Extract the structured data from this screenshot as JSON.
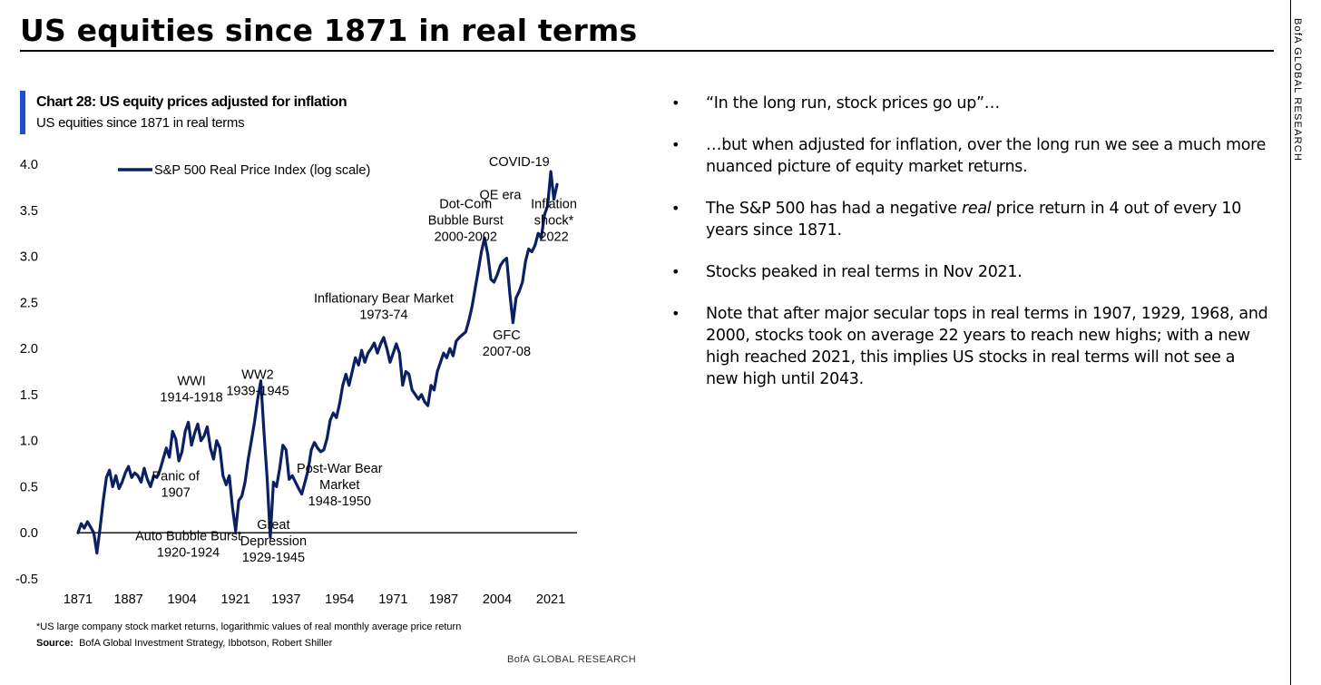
{
  "header": {
    "title": "US equities since 1871 in real terms",
    "side_brand": "BofA GLOBAL RESEARCH"
  },
  "chart_header": {
    "title": "Chart 28: US equity prices adjusted for inflation",
    "subtitle": "US equities since 1871 in real terms"
  },
  "footer": {
    "footnote": "*US large company stock market returns, logarithmic values of real monthly average price return",
    "source_label": "Source:",
    "source_text": "BofA Global Investment Strategy, Ibbotson, Robert Shiller",
    "brand": "BofA GLOBAL RESEARCH"
  },
  "bullets": [
    {
      "marker": "•",
      "parts": [
        {
          "t": "“In the long run, stock prices go up”…"
        }
      ]
    },
    {
      "marker": "•",
      "parts": [
        {
          "t": "…but when adjusted for inflation, over the long run we see a much more nuanced picture of equity market returns."
        }
      ]
    },
    {
      "marker": "•",
      "parts": [
        {
          "t": "The S&P 500 has had a negative "
        },
        {
          "t": "real",
          "i": true
        },
        {
          "t": " price return in 4 out of every 10 years since 1871."
        }
      ]
    },
    {
      "marker": "•",
      "parts": [
        {
          "t": "Stocks peaked in real terms in Nov 2021."
        }
      ]
    },
    {
      "marker": "•",
      "parts": [
        {
          "t": "Note that after major secular tops in real terms in 1907, 1929, 1968, and 2000, stocks took on average 22 years to reach new highs; with a new high reached 2021, this implies US stocks in real terms will not see a new high until 2043."
        }
      ]
    }
  ],
  "chart_data": {
    "type": "line",
    "title": "Chart 28: US equity prices adjusted for inflation",
    "subtitle": "US equities since 1871 in real terms",
    "xlabel": "",
    "ylabel": "",
    "xlim": [
      1871,
      2023
    ],
    "ylim": [
      -0.5,
      4.0
    ],
    "x_ticks": [
      "1871",
      "1887",
      "1904",
      "1921",
      "1937",
      "1954",
      "1971",
      "1987",
      "2004",
      "2021"
    ],
    "y_ticks": [
      "4.0",
      "3.5",
      "3.0",
      "2.5",
      "2.0",
      "1.5",
      "1.0",
      "0.5",
      "0.0",
      "-0.5"
    ],
    "color": "#0b1f63",
    "series": [
      {
        "name": "S&P 500 Real Price Index (log scale)",
        "x": [
          1871,
          1872,
          1873,
          1874,
          1875,
          1876,
          1877,
          1878,
          1879,
          1880,
          1881,
          1882,
          1883,
          1884,
          1885,
          1886,
          1887,
          1888,
          1889,
          1890,
          1891,
          1892,
          1893,
          1894,
          1895,
          1896,
          1897,
          1898,
          1899,
          1900,
          1901,
          1902,
          1903,
          1904,
          1905,
          1906,
          1907,
          1908,
          1909,
          1910,
          1911,
          1912,
          1913,
          1914,
          1915,
          1916,
          1917,
          1918,
          1919,
          1920,
          1921,
          1922,
          1923,
          1924,
          1925,
          1926,
          1927,
          1928,
          1929,
          1930,
          1931,
          1932,
          1933,
          1934,
          1935,
          1936,
          1937,
          1938,
          1939,
          1940,
          1941,
          1942,
          1943,
          1944,
          1945,
          1946,
          1947,
          1948,
          1949,
          1950,
          1951,
          1952,
          1953,
          1954,
          1955,
          1956,
          1957,
          1958,
          1959,
          1960,
          1961,
          1962,
          1963,
          1964,
          1965,
          1966,
          1967,
          1968,
          1969,
          1970,
          1971,
          1972,
          1973,
          1974,
          1975,
          1976,
          1977,
          1978,
          1979,
          1980,
          1981,
          1982,
          1983,
          1984,
          1985,
          1986,
          1987,
          1988,
          1989,
          1990,
          1991,
          1992,
          1993,
          1994,
          1995,
          1996,
          1997,
          1998,
          1999,
          2000,
          2001,
          2002,
          2003,
          2004,
          2005,
          2006,
          2007,
          2008,
          2009,
          2010,
          2011,
          2012,
          2013,
          2014,
          2015,
          2016,
          2017,
          2018,
          2019,
          2020,
          2021,
          2022,
          2023
        ],
        "values": [
          0.0,
          0.1,
          0.05,
          0.12,
          0.06,
          0.0,
          -0.22,
          0.05,
          0.35,
          0.6,
          0.68,
          0.5,
          0.62,
          0.48,
          0.55,
          0.65,
          0.72,
          0.6,
          0.65,
          0.62,
          0.55,
          0.7,
          0.58,
          0.5,
          0.62,
          0.6,
          0.68,
          0.8,
          0.92,
          0.82,
          1.1,
          1.02,
          0.78,
          0.88,
          1.1,
          1.2,
          0.95,
          1.08,
          1.18,
          1.0,
          1.05,
          1.15,
          0.92,
          0.8,
          1.0,
          0.92,
          0.62,
          0.52,
          0.62,
          0.28,
          0.02,
          0.35,
          0.4,
          0.55,
          0.8,
          1.0,
          1.2,
          1.45,
          1.65,
          1.1,
          0.6,
          -0.05,
          0.55,
          0.5,
          0.7,
          0.95,
          0.9,
          0.58,
          0.62,
          0.55,
          0.48,
          0.42,
          0.55,
          0.68,
          0.9,
          0.98,
          0.92,
          0.88,
          0.9,
          1.02,
          1.22,
          1.3,
          1.25,
          1.4,
          1.6,
          1.72,
          1.6,
          1.75,
          1.9,
          1.82,
          1.98,
          1.85,
          1.95,
          2.0,
          2.06,
          1.95,
          2.05,
          2.12,
          2.0,
          1.85,
          1.95,
          2.05,
          1.95,
          1.6,
          1.75,
          1.72,
          1.55,
          1.5,
          1.45,
          1.5,
          1.42,
          1.38,
          1.6,
          1.55,
          1.75,
          1.85,
          1.95,
          1.9,
          2.0,
          1.92,
          2.08,
          2.12,
          2.15,
          2.18,
          2.3,
          2.45,
          2.65,
          2.85,
          3.05,
          3.2,
          3.02,
          2.75,
          2.72,
          2.8,
          2.9,
          2.95,
          2.98,
          2.6,
          2.28,
          2.55,
          2.62,
          2.72,
          2.95,
          3.08,
          3.05,
          3.12,
          3.25,
          3.2,
          3.45,
          3.55,
          3.92,
          3.62,
          3.78
        ]
      }
    ],
    "annotations": [
      {
        "x": 1907,
        "y": 1.6,
        "lines": [
          "WWI",
          "1914-1918"
        ]
      },
      {
        "x": 1873,
        "y": 0.57,
        "lines": [
          "Panic of",
          "1907"
        ],
        "x_label": 1902
      },
      {
        "x": 1928,
        "y": 1.67,
        "lines": [
          "WW2",
          "1939-1945"
        ]
      },
      {
        "x": 1919,
        "y": -0.08,
        "lines": [
          "Auto Bubble Burst",
          "1920-1924"
        ],
        "x_label": 1906
      },
      {
        "x": 1933,
        "y": 0.04,
        "lines": [
          "Great",
          "Depression",
          "1929-1945"
        ]
      },
      {
        "x": 1952,
        "y": 0.65,
        "lines": [
          "Post-War Bear",
          "Market",
          "1948-1950"
        ],
        "x_label": 1954
      },
      {
        "x": 1968,
        "y": 2.5,
        "lines": [
          "Inflationary Bear Market",
          "1973-74"
        ]
      },
      {
        "x": 1994,
        "y": 3.52,
        "lines": [
          "Dot-Com",
          "Bubble Burst",
          "2000-2002"
        ]
      },
      {
        "x": 2007,
        "y": 2.1,
        "lines": [
          "GFC",
          "2007-08"
        ]
      },
      {
        "x": 2005,
        "y": 3.62,
        "lines": [
          "QE era"
        ]
      },
      {
        "x": 2011,
        "y": 3.98,
        "lines": [
          "COVID-19"
        ]
      },
      {
        "x": 2022,
        "y": 3.52,
        "lines": [
          "Inflation",
          "shock*",
          "2022"
        ]
      }
    ],
    "legend": {
      "position": "top-left",
      "label": "S&P 500 Real Price Index (log scale)"
    },
    "grid": false,
    "zero_line": true
  }
}
